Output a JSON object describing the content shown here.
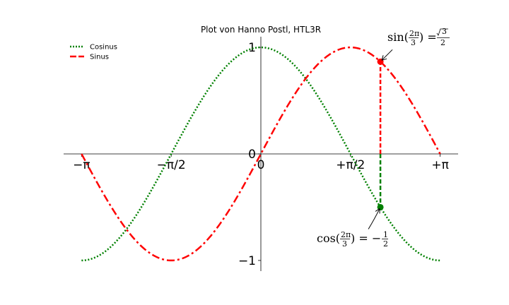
{
  "chart_data": {
    "type": "line",
    "title": "Plot von Hanno Postl, HTL3R",
    "xlim": [
      -3.4558,
      3.4558
    ],
    "ylim": [
      -1.1,
      1.1
    ],
    "x_ticks": [
      {
        "value": -3.14159,
        "label": "−π"
      },
      {
        "value": -1.5708,
        "label": "−π/2"
      },
      {
        "value": 0,
        "label": "0"
      },
      {
        "value": 1.5708,
        "label": "+π/2"
      },
      {
        "value": 3.14159,
        "label": "+π"
      }
    ],
    "y_ticks": [
      {
        "value": -1,
        "label": "−1"
      },
      {
        "value": 0,
        "label": "0"
      },
      {
        "value": 1,
        "label": "1"
      }
    ],
    "x_domain": [
      -3.14159,
      3.14159
    ],
    "series": [
      {
        "name": "Cosinus",
        "function": "cos",
        "color": "#008000",
        "style": "dotted"
      },
      {
        "name": "Sinus",
        "function": "sin",
        "color": "#ff0000",
        "style": "dashdot"
      }
    ],
    "legend_position": "upper-left",
    "annotations": {
      "t": 2.0944,
      "sin_point": {
        "x": 2.0944,
        "y": 0.866,
        "color": "#ff0000"
      },
      "cos_point": {
        "x": 2.0944,
        "y": -0.5,
        "color": "#008000"
      },
      "sin_label": {
        "lhs": "sin(",
        "num": "2π",
        "den": "3",
        "rhs": ") = ",
        "root": "3",
        "den2": "2"
      },
      "cos_label": {
        "lhs": "cos(",
        "num": "2π",
        "den": "3",
        "rhs": ") = −",
        "num2": "1",
        "den2": "2"
      }
    }
  }
}
